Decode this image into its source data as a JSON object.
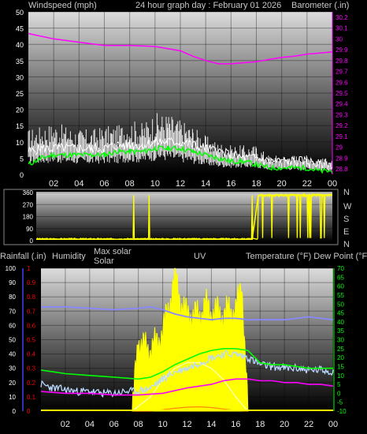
{
  "colors": {
    "background": "#000000",
    "frame": "#7a7a7a",
    "wind_speed": "#ffffff",
    "wind_gust": "#ffffff",
    "wind_avg": "#00ff00",
    "barometer": "#ff00ff",
    "direction": "#ffff00",
    "solar": "#ffff00",
    "temperature": "#00ff00",
    "dew_point": "#ff00ff",
    "humidity": "#8888ff",
    "rain_axis": "#ff0000",
    "rain_ticks": "#4040ff",
    "uv": "#ff8800",
    "temp_trace": "#b8d8ff"
  },
  "header": {
    "left": "Windspeed (mph)",
    "center": "24 hour graph day : February 01 2026",
    "right": "Barometer (.in)"
  },
  "bottom_header": {
    "rain": "Rainfall (.in)",
    "humidity": "Humidity",
    "max_solar": "Max solar",
    "solar": "Solar",
    "uv": "UV",
    "temp": "Temperature (°F) Dew Point (°F)"
  },
  "direction_labels": [
    "N",
    "W",
    "S",
    "E",
    "N"
  ],
  "chart_data": [
    {
      "type": "line",
      "title": "24 hour graph day : February 01 2026",
      "ylabel": "Windspeed (mph)",
      "y2label": "Barometer (.in)",
      "x_ticks": [
        "02",
        "04",
        "06",
        "08",
        "10",
        "12",
        "14",
        "16",
        "18",
        "20",
        "22",
        "00"
      ],
      "y_ticks": [
        0,
        5,
        10,
        15,
        20,
        25,
        30,
        35,
        40,
        45,
        50
      ],
      "ylim": [
        0,
        50
      ],
      "y2_ticks": [
        "28.8",
        "28.9",
        "29",
        "29.1",
        "29.2",
        "29.3",
        "29.4",
        "29.5",
        "29.6",
        "29.7",
        "29.8",
        "29.9",
        "30",
        "30.1",
        "30.2"
      ],
      "y2lim": [
        28.75,
        30.25
      ],
      "xlim": [
        0,
        24
      ],
      "series": [
        {
          "role": "barometer",
          "x": [
            0,
            2,
            4,
            6,
            8,
            10,
            12,
            13,
            14,
            15,
            16,
            17,
            18,
            19,
            20,
            21,
            22,
            23,
            24
          ],
          "values": [
            30.05,
            30.0,
            29.97,
            29.94,
            29.94,
            29.93,
            29.89,
            29.84,
            29.8,
            29.77,
            29.77,
            29.78,
            29.79,
            29.81,
            29.83,
            29.84,
            29.86,
            29.87,
            29.88
          ]
        },
        {
          "role": "gust",
          "x": [
            0,
            1,
            2,
            3,
            4,
            5,
            6,
            7,
            8,
            9,
            10,
            11,
            12,
            13,
            14,
            15,
            16,
            17,
            18,
            19,
            20,
            21,
            22,
            23,
            24
          ],
          "values": [
            14,
            15,
            16,
            15,
            14,
            14,
            15,
            15,
            17,
            16,
            19,
            19,
            17,
            15,
            12,
            10,
            9,
            9,
            9,
            6,
            6,
            6,
            6,
            5,
            5
          ]
        },
        {
          "role": "average",
          "x": [
            0,
            1,
            2,
            3,
            4,
            5,
            6,
            7,
            8,
            9,
            10,
            11,
            12,
            13,
            14,
            15,
            16,
            17,
            18,
            19,
            20,
            21,
            22,
            23,
            24
          ],
          "values": [
            3,
            5,
            6,
            6,
            6,
            6,
            6,
            7,
            7,
            7,
            8,
            8,
            8,
            7,
            6,
            5,
            4,
            4,
            3,
            2,
            2,
            2,
            2,
            1,
            1
          ]
        },
        {
          "role": "speed",
          "x": [
            0,
            1,
            2,
            3,
            4,
            5,
            6,
            7,
            8,
            9,
            10,
            11,
            12,
            13,
            14,
            15,
            16,
            17,
            18,
            19,
            20,
            21,
            22,
            23,
            24
          ],
          "values": [
            7,
            8,
            8,
            8,
            8,
            8,
            8,
            9,
            9,
            9,
            10,
            10,
            10,
            9,
            8,
            7,
            6,
            5,
            5,
            4,
            4,
            4,
            4,
            3,
            3
          ]
        }
      ]
    },
    {
      "type": "line",
      "ylabel": "Wind direction",
      "y_ticks": [
        0,
        90,
        180,
        270,
        360
      ],
      "ylim": [
        0,
        360
      ],
      "xlim": [
        0,
        24
      ],
      "series": [
        {
          "role": "direction",
          "x": [
            0,
            7.5,
            8,
            17.5,
            18,
            24
          ],
          "values": [
            10,
            10,
            10,
            10,
            340,
            340
          ]
        }
      ]
    },
    {
      "type": "line",
      "x_ticks": [
        "02",
        "04",
        "06",
        "08",
        "10",
        "12",
        "14",
        "16",
        "18",
        "20",
        "22",
        "00"
      ],
      "xlim": [
        0,
        24
      ],
      "y_ticks_humidity": [
        0,
        10,
        20,
        30,
        40,
        50,
        60,
        70,
        80,
        90,
        100
      ],
      "ylim_humidity": [
        0,
        100
      ],
      "y_ticks_rain": [
        "0",
        "0.1",
        "0.2",
        "0.3",
        "0.4",
        "0.5",
        "0.6",
        "0.7",
        "0.8",
        "0.9",
        "1"
      ],
      "ylim_rain": [
        0,
        1
      ],
      "y_ticks_temp": [
        -10,
        -5,
        0,
        5,
        10,
        15,
        20,
        25,
        30,
        35,
        40,
        45,
        50,
        55,
        60,
        65,
        70
      ],
      "ylim_temp": [
        -10,
        70
      ],
      "series": [
        {
          "role": "humidity",
          "x": [
            0,
            2,
            4,
            6,
            8,
            9,
            10,
            11,
            12,
            13,
            14,
            15,
            16,
            17,
            18,
            19,
            20,
            21,
            22,
            23,
            24
          ],
          "values": [
            73,
            73,
            72,
            71,
            72,
            73,
            71,
            68,
            66,
            65,
            64,
            65,
            65,
            64,
            64,
            64,
            64,
            65,
            66,
            65,
            64
          ]
        },
        {
          "role": "solar",
          "x": [
            7.5,
            8,
            8.5,
            9,
            9.5,
            10,
            10.5,
            11,
            11.5,
            12,
            12.5,
            13,
            13.5,
            14,
            14.5,
            15,
            15.5,
            16,
            16.5,
            17
          ],
          "values": [
            0,
            50,
            45,
            44,
            48,
            56,
            73,
            95,
            76,
            68,
            68,
            67,
            75,
            69,
            70,
            67,
            72,
            70,
            90,
            0
          ]
        },
        {
          "role": "max_solar",
          "x": [
            7.5,
            9,
            10,
            11,
            12,
            13,
            14,
            15,
            16,
            17
          ],
          "values": [
            0,
            10,
            22,
            30,
            34,
            34,
            30,
            22,
            10,
            0
          ]
        },
        {
          "role": "temperature",
          "x": [
            0,
            1,
            2,
            4,
            6,
            8,
            9,
            10,
            11,
            12,
            13,
            14,
            15,
            16,
            17,
            18,
            19,
            20,
            21,
            22,
            23,
            24
          ],
          "values": [
            13,
            12,
            11,
            10,
            9,
            8,
            9,
            12,
            16,
            19,
            22,
            24,
            25,
            25,
            24,
            17,
            16,
            16,
            15,
            14,
            14,
            14
          ]
        },
        {
          "role": "dew_point",
          "x": [
            0,
            2,
            4,
            6,
            8,
            10,
            12,
            14,
            15,
            16,
            17,
            18,
            19,
            20,
            21,
            22,
            23,
            24
          ],
          "values": [
            1,
            0,
            0,
            -1,
            -1,
            0,
            3,
            5,
            7,
            8,
            8,
            7,
            7,
            6,
            6,
            5,
            5,
            4
          ]
        },
        {
          "role": "uv",
          "x": [
            7.5,
            9,
            10,
            11,
            12,
            13,
            14,
            15,
            16,
            17
          ],
          "values": [
            0,
            0,
            0.2,
            0.4,
            0.55,
            0.6,
            0.5,
            0.3,
            0.1,
            0
          ]
        },
        {
          "role": "temp_trace",
          "x": [
            0,
            1,
            2,
            3,
            4,
            5,
            6,
            7,
            8,
            9,
            10,
            11,
            12,
            13,
            14,
            15,
            16,
            17,
            18,
            19,
            20,
            21,
            22,
            23,
            24
          ],
          "values": [
            5,
            3,
            2,
            1,
            1,
            0,
            0,
            1,
            1,
            3,
            8,
            12,
            14,
            17,
            20,
            22,
            22,
            20,
            16,
            15,
            14,
            14,
            13,
            13,
            12
          ]
        }
      ]
    }
  ]
}
